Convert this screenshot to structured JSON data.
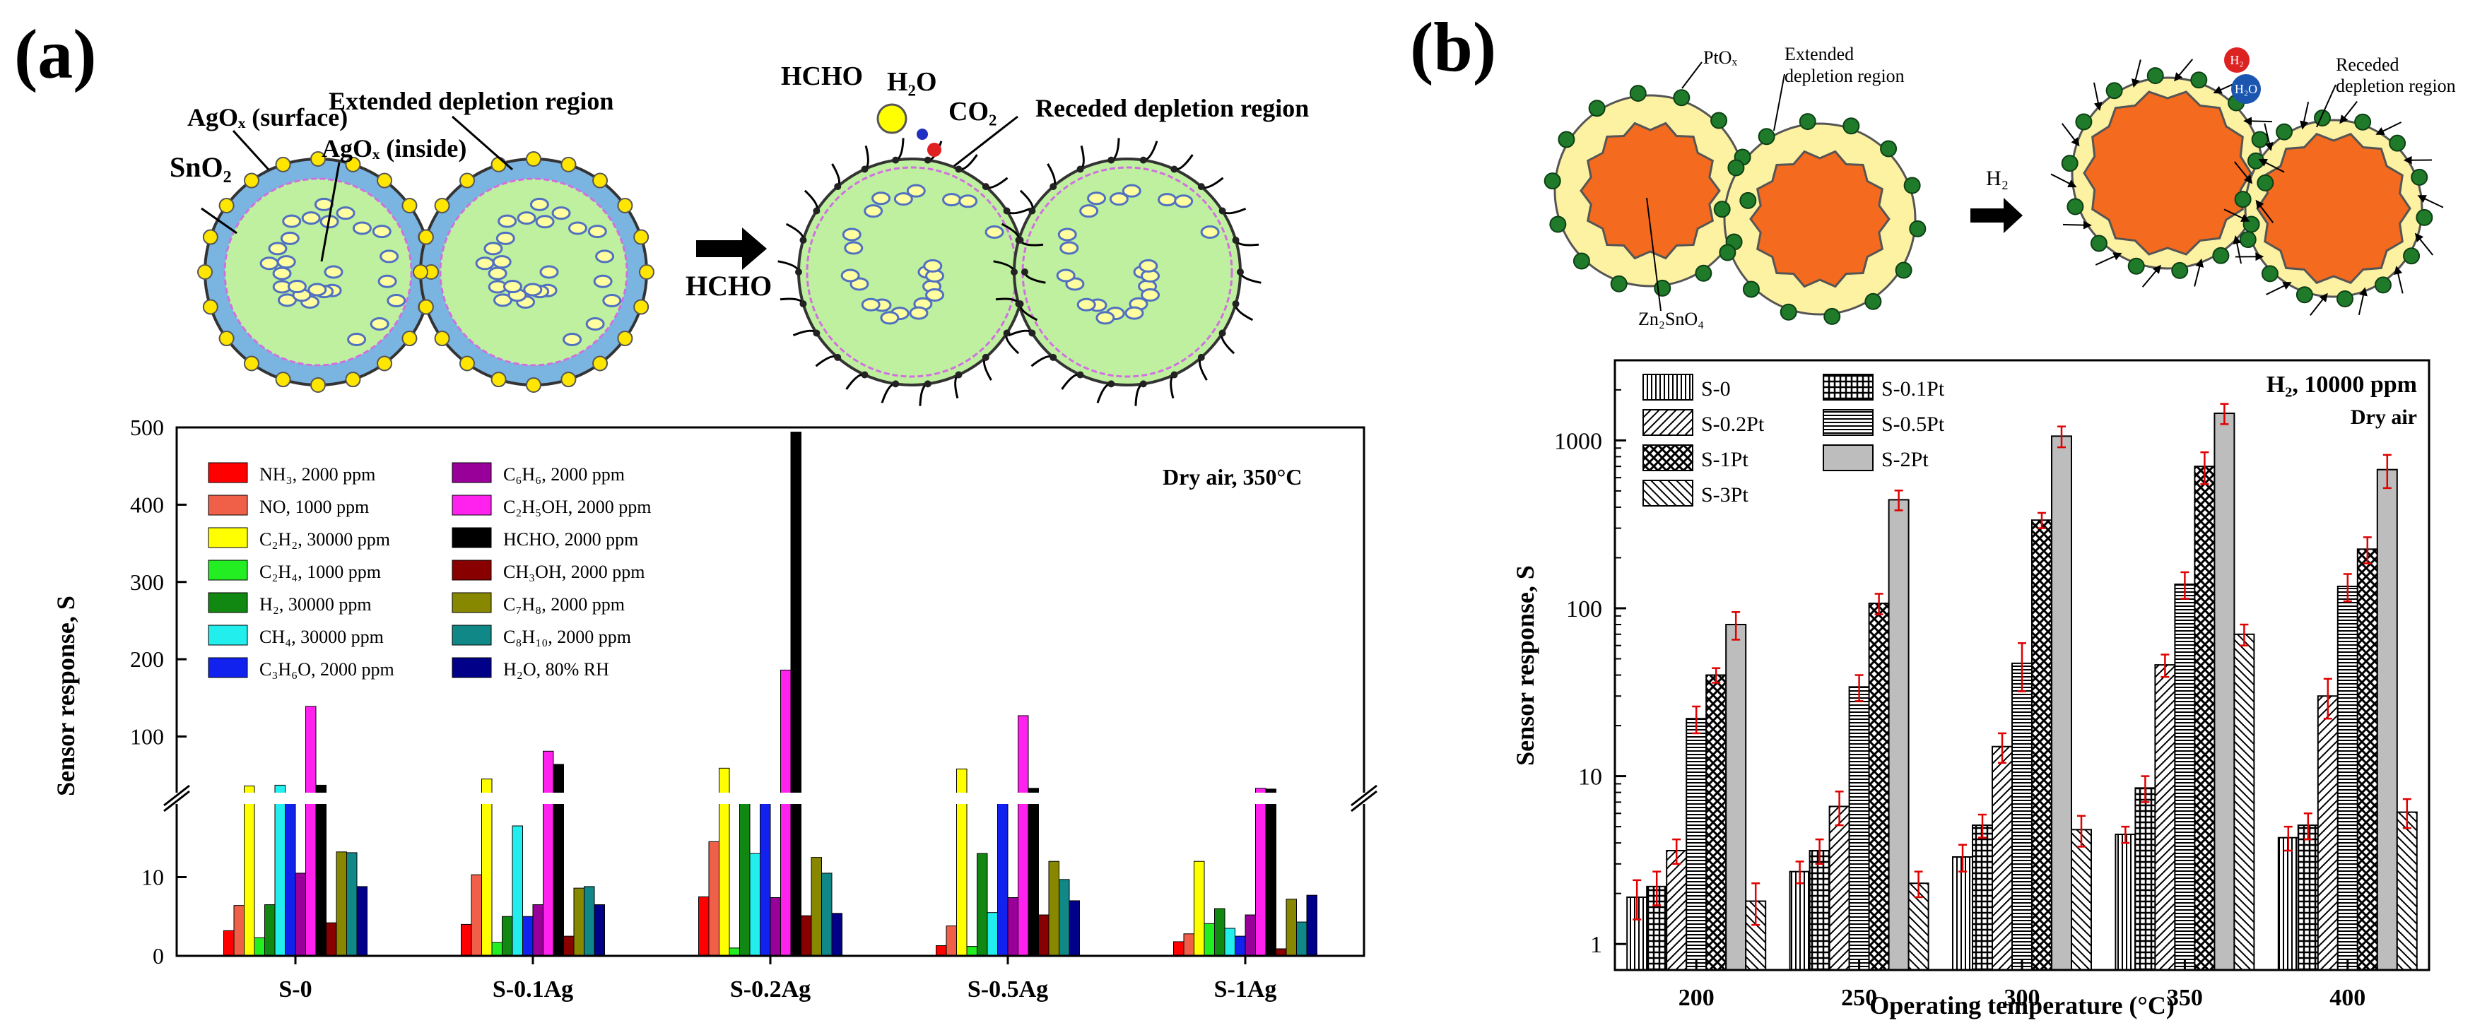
{
  "panels": {
    "a_label": "(a)",
    "b_label": "(b)"
  },
  "schematic_a": {
    "agox_surface": "AgOₓ (surface)",
    "agox_inside": "AgOₓ (inside)",
    "sno2": "SnO₂",
    "extended": "Extended depletion region",
    "arrow_label": "HCHO",
    "hcho": "HCHO",
    "h2o": "H₂O",
    "co2": "CO₂",
    "receded": "Receded depletion region"
  },
  "schematic_b": {
    "ptox": "PtOₓ",
    "extended_1": "Extended",
    "extended_2": "depletion region",
    "zn2sno4": "Zn₂SnO₄",
    "arrow_label": "H₂",
    "h2": "H₂",
    "h2o": "H₂O",
    "receded_1": "Receded",
    "receded_2": "depletion region"
  },
  "colors": {
    "sno2_shell": "#7ab4e0",
    "sno2_core": "#bff0a0",
    "agox": "#ffe600",
    "zn_core": "#f46a1e",
    "shell_b": "#fdf2a2",
    "pt": "#1f7a2a",
    "error": "#e00000"
  },
  "chart_data": [
    {
      "type": "bar",
      "title": "Dry air, 350°C",
      "xlabel": "",
      "ylabel": "Sensor response, S",
      "categories": [
        "S-0",
        "S-0.1Ag",
        "S-0.2Ag",
        "S-0.5Ag",
        "S-1Ag"
      ],
      "axis_break": {
        "lower_range": [
          0,
          20
        ],
        "upper_range": [
          20,
          500
        ]
      },
      "yticks_lower": [
        "10",
        "0"
      ],
      "yticks_upper": [
        "100",
        "200",
        "300",
        "400",
        "500"
      ],
      "series": [
        {
          "name": "NH₃, 2000 ppm",
          "color": "#ff0000",
          "values": [
            3.2,
            4.0,
            7.5,
            1.3,
            1.8
          ]
        },
        {
          "name": "NO, 1000 ppm",
          "color": "#f06048",
          "values": [
            6.4,
            10.3,
            14.5,
            3.8,
            2.8
          ]
        },
        {
          "name": "C₂H₂, 30000 ppm",
          "color": "#ffff00",
          "values": [
            36,
            45,
            59,
            58,
            12
          ]
        },
        {
          "name": "C₂H₄, 1000 ppm",
          "color": "#22ee22",
          "values": [
            2.3,
            1.7,
            1.0,
            1.2,
            4.1
          ]
        },
        {
          "name": "H₂, 30000 ppm",
          "color": "#118811",
          "values": [
            6.5,
            5.0,
            21,
            13,
            6.0
          ]
        },
        {
          "name": "CH₄, 30000 ppm",
          "color": "#22eeee",
          "values": [
            37,
            16.5,
            13,
            5.5,
            3.5
          ]
        },
        {
          "name": "C₃H₆O, 2000 ppm",
          "color": "#1122ee",
          "values": [
            21,
            5.0,
            21,
            21,
            2.5
          ]
        },
        {
          "name": "C₆H₆, 2000 ppm",
          "color": "#990099",
          "values": [
            10.5,
            6.5,
            7.4,
            7.4,
            5.2
          ]
        },
        {
          "name": "C₂H₅OH, 2000 ppm",
          "color": "#ff22ee",
          "values": [
            139,
            81,
            186,
            127,
            33
          ]
        },
        {
          "name": "HCHO, 2000 ppm",
          "color": "#000000",
          "values": [
            37,
            64,
            494,
            33,
            32
          ]
        },
        {
          "name": "CH₃OH, 2000 ppm",
          "color": "#880000",
          "values": [
            4.2,
            2.5,
            5.1,
            5.2,
            0.9
          ]
        },
        {
          "name": "C₇H₈, 2000 ppm",
          "color": "#888800",
          "values": [
            13.2,
            8.6,
            12.5,
            12.0,
            7.2
          ]
        },
        {
          "name": "C₈H₁₀, 2000 ppm",
          "color": "#118888",
          "values": [
            13.1,
            8.8,
            10.5,
            9.7,
            4.3
          ]
        },
        {
          "name": "H₂O, 80% RH",
          "color": "#000088",
          "values": [
            8.8,
            6.5,
            5.4,
            7.0,
            7.7
          ]
        }
      ]
    },
    {
      "type": "bar",
      "title": "H₂, 10000 ppm",
      "subtitle": "Dry air",
      "xlabel": "Operating temperature (°C)",
      "ylabel": "Sensor response, S",
      "yscale": "log",
      "ylim": [
        0.7,
        3000
      ],
      "yticks": [
        "1",
        "10",
        "100",
        "1000"
      ],
      "categories": [
        "200",
        "250",
        "300",
        "350",
        "400"
      ],
      "series": [
        {
          "name": "S-0",
          "pattern": "vlines",
          "values": [
            1.9,
            2.7,
            3.3,
            4.5,
            4.3
          ],
          "errors": [
            0.5,
            0.4,
            0.6,
            0.5,
            0.7
          ]
        },
        {
          "name": "S-0.1Pt",
          "pattern": "grid",
          "values": [
            2.2,
            3.6,
            5.1,
            8.5,
            5.1
          ],
          "errors": [
            0.5,
            0.6,
            0.8,
            1.5,
            0.9
          ]
        },
        {
          "name": "S-0.2Pt",
          "pattern": "diag",
          "values": [
            3.6,
            6.6,
            15,
            46,
            30
          ],
          "errors": [
            0.6,
            1.5,
            3,
            7,
            8
          ]
        },
        {
          "name": "S-0.5Pt",
          "pattern": "hlines",
          "values": [
            22,
            34,
            47,
            139,
            135
          ],
          "errors": [
            4,
            6,
            15,
            25,
            25
          ]
        },
        {
          "name": "S-1Pt",
          "pattern": "cross",
          "values": [
            40,
            107,
            335,
            700,
            225
          ],
          "errors": [
            4,
            15,
            35,
            150,
            40
          ]
        },
        {
          "name": "S-2Pt",
          "pattern": "gray",
          "values": [
            80,
            443,
            1060,
            1450,
            670
          ],
          "errors": [
            15,
            60,
            150,
            200,
            150
          ]
        },
        {
          "name": "S-3Pt",
          "pattern": "rdiag",
          "values": [
            1.8,
            2.3,
            4.8,
            70,
            6.1
          ],
          "errors": [
            0.5,
            0.4,
            1.0,
            10,
            1.2
          ]
        }
      ]
    }
  ]
}
